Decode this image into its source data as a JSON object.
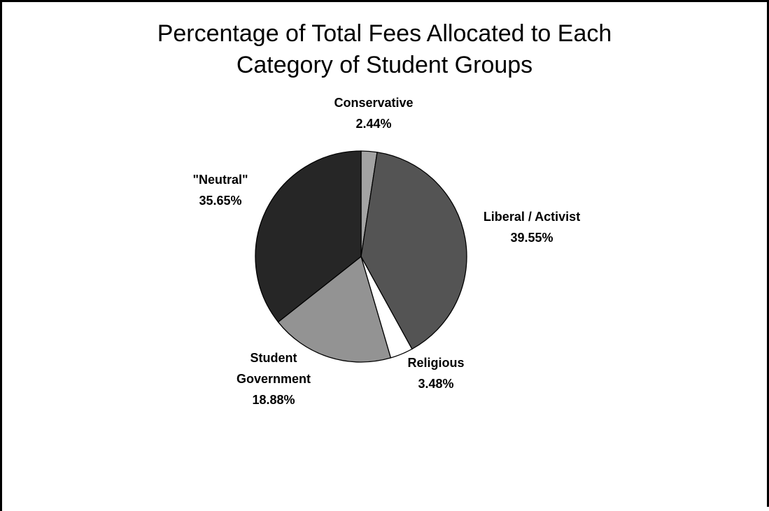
{
  "title_lines": [
    "Percentage of Total Fees Allocated to Each",
    "Category of Student Groups"
  ],
  "chart_data": {
    "type": "pie",
    "title": "Percentage of Total Fees Allocated to Each Category of Student Groups",
    "start": "top",
    "direction": "clockwise",
    "slices": [
      {
        "key": "conservative",
        "label_lines": [
          "Conservative",
          "2.44%"
        ],
        "value": 2.44,
        "color": "#a3a3a3"
      },
      {
        "key": "liberal-activist",
        "label_lines": [
          "Liberal / Activist",
          "39.55%"
        ],
        "value": 39.55,
        "color": "#545454"
      },
      {
        "key": "religious",
        "label_lines": [
          "Religious",
          "3.48%"
        ],
        "value": 3.48,
        "color": "#ffffff"
      },
      {
        "key": "student-government",
        "label_lines": [
          "Student",
          "Government",
          "18.88%"
        ],
        "value": 18.88,
        "color": "#939393"
      },
      {
        "key": "neutral",
        "label_lines": [
          "\"Neutral\"",
          "35.65%"
        ],
        "value": 35.65,
        "color": "#262626"
      }
    ],
    "legend": "none"
  }
}
